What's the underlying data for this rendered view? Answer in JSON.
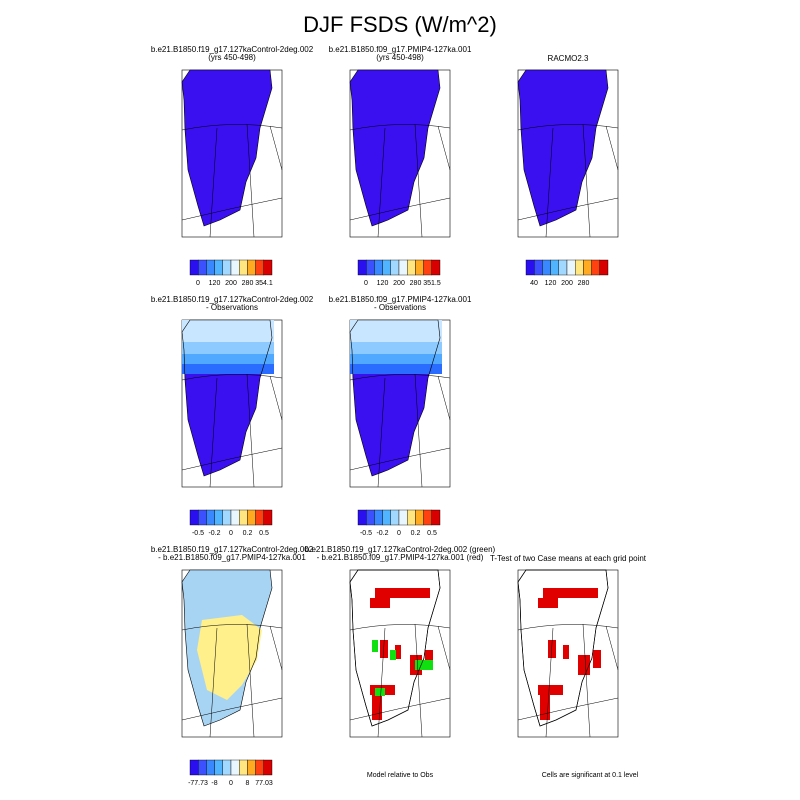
{
  "title": "DJF FSDS (W/m^2)",
  "panels": [
    {
      "title": [
        "b.e21.B1850.f19_g17.127kaControl-2deg.002",
        "(yrs 450-498)"
      ],
      "colorbar": [
        "0",
        "120",
        "200",
        "280",
        "354.1"
      ]
    },
    {
      "title": [
        "b.e21.B1850.f09_g17.PMIP4-127ka.001",
        "(yrs 450-498)"
      ],
      "colorbar": [
        "0",
        "120",
        "200",
        "280",
        "351.5"
      ]
    },
    {
      "title": [
        "RACMO2.3"
      ],
      "colorbar": [
        "40",
        "120",
        "200",
        "280"
      ]
    },
    {
      "title": [
        "b.e21.B1850.f19_g17.127kaControl-2deg.002",
        "- Observations"
      ],
      "colorbar": [
        "-0.5",
        "-0.2",
        "0",
        "0.2",
        "0.5"
      ]
    },
    {
      "title": [
        "b.e21.B1850.f09_g17.PMIP4-127ka.001",
        "- Observations"
      ],
      "colorbar": [
        "-0.5",
        "-0.2",
        "0",
        "0.2",
        "0.5"
      ]
    },
    {
      "title": [
        "b.e21.B1850.f19_g17.127kaControl-2deg.002",
        "- b.e21.B1850.f09_g17.PMIP4-127ka.001"
      ],
      "colorbar": [
        "-77.73",
        "-8",
        "0",
        "8",
        "77.03"
      ]
    },
    {
      "title": [
        "b.e21.B1850.f19_g17.127kaControl-2deg.002 (green)",
        "- b.e21.B1850.f09_g17.PMIP4-127ka.001 (red)"
      ],
      "note": "Model relative to Obs"
    },
    {
      "title": [
        "T-Test of two Case means at each grid point"
      ],
      "note": "Cells are significant at 0.1 level"
    }
  ]
}
